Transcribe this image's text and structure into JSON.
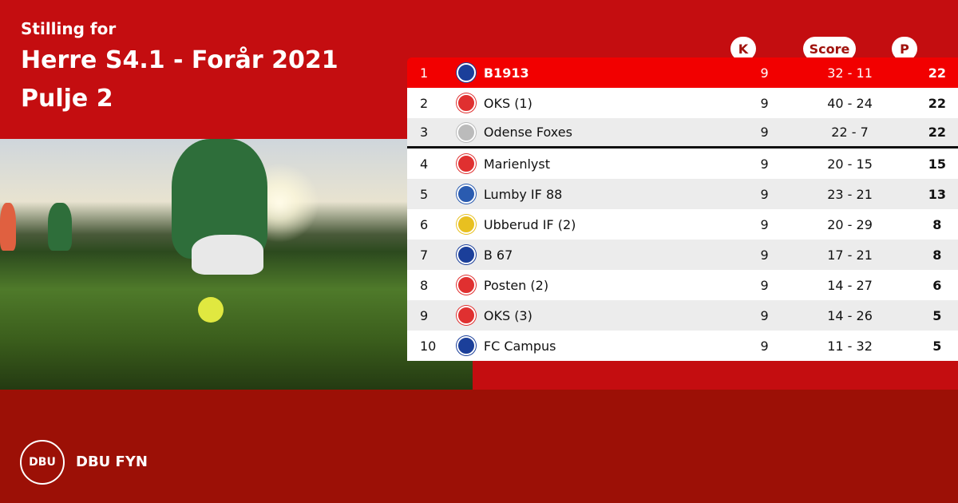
{
  "header": {
    "line1": "Stilling for",
    "line2": "Herre S4.1 - Forår 2021",
    "line3": "Pulje 2"
  },
  "columns": {
    "k": "K",
    "score": "Score",
    "p": "P"
  },
  "rows": [
    {
      "pos": "1",
      "team": "B1913",
      "k": "9",
      "score": "32 - 11",
      "p": "22",
      "logo_color": "#1b3f9a"
    },
    {
      "pos": "2",
      "team": "OKS (1)",
      "k": "9",
      "score": "40 - 24",
      "p": "22",
      "logo_color": "#e03030"
    },
    {
      "pos": "3",
      "team": "Odense Foxes",
      "k": "9",
      "score": "22 - 7",
      "p": "22",
      "logo_color": "#bbbbbb"
    },
    {
      "pos": "4",
      "team": "Marienlyst",
      "k": "9",
      "score": "20 - 15",
      "p": "15",
      "logo_color": "#e03030"
    },
    {
      "pos": "5",
      "team": "Lumby IF 88",
      "k": "9",
      "score": "23 - 21",
      "p": "13",
      "logo_color": "#2a5bb0"
    },
    {
      "pos": "6",
      "team": "Ubberud IF (2)",
      "k": "9",
      "score": "20 - 29",
      "p": "8",
      "logo_color": "#e8c020"
    },
    {
      "pos": "7",
      "team": "B 67",
      "k": "9",
      "score": "17 - 21",
      "p": "8",
      "logo_color": "#1b3f9a"
    },
    {
      "pos": "8",
      "team": "Posten (2)",
      "k": "9",
      "score": "14 - 27",
      "p": "6",
      "logo_color": "#e03030"
    },
    {
      "pos": "9",
      "team": "OKS (3)",
      "k": "9",
      "score": "14 - 26",
      "p": "5",
      "logo_color": "#e03030"
    },
    {
      "pos": "10",
      "team": "FC Campus",
      "k": "9",
      "score": "11 - 32",
      "p": "5",
      "logo_color": "#1b3f9a"
    }
  ],
  "footer": {
    "logo_text": "DBU",
    "brand": "DBU FYN"
  }
}
